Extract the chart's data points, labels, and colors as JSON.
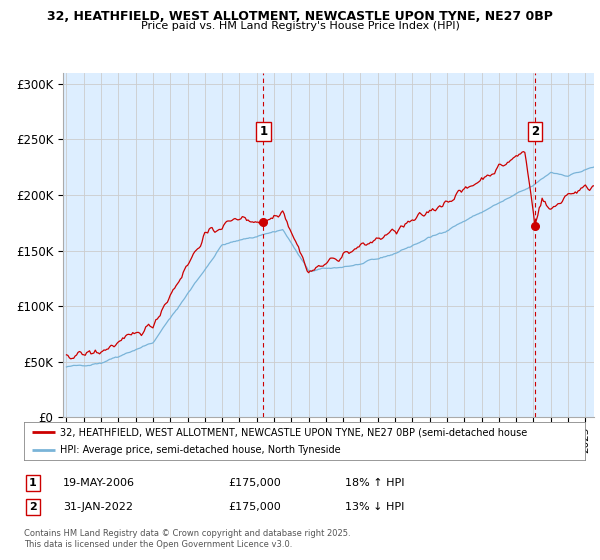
{
  "title1": "32, HEATHFIELD, WEST ALLOTMENT, NEWCASTLE UPON TYNE, NE27 0BP",
  "title2": "Price paid vs. HM Land Registry's House Price Index (HPI)",
  "sale1_date": "19-MAY-2006",
  "sale1_price": "£175,000",
  "sale1_hpi": "18% ↑ HPI",
  "sale2_date": "31-JAN-2022",
  "sale2_price": "£175,000",
  "sale2_hpi": "13% ↓ HPI",
  "legend1": "32, HEATHFIELD, WEST ALLOTMENT, NEWCASTLE UPON TYNE, NE27 0BP (semi-detached house",
  "legend2": "HPI: Average price, semi-detached house, North Tyneside",
  "footnote": "Contains HM Land Registry data © Crown copyright and database right 2025.\nThis data is licensed under the Open Government Licence v3.0.",
  "hpi_color": "#7ab4d8",
  "price_color": "#cc0000",
  "bg_fill_color": "#ddeeff",
  "background_color": "#ffffff",
  "grid_color": "#cccccc",
  "ylim": [
    0,
    310000
  ],
  "yticks": [
    0,
    50000,
    100000,
    150000,
    200000,
    250000,
    300000
  ],
  "ytick_labels": [
    "£0",
    "£50K",
    "£100K",
    "£150K",
    "£200K",
    "£250K",
    "£300K"
  ],
  "xstart": 1995,
  "xend": 2025.5
}
